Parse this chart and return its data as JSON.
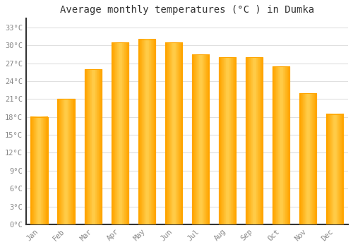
{
  "months": [
    "Jan",
    "Feb",
    "Mar",
    "Apr",
    "May",
    "Jun",
    "Jul",
    "Aug",
    "Sep",
    "Oct",
    "Nov",
    "Dec"
  ],
  "values": [
    18,
    21,
    26,
    30.5,
    31,
    30.5,
    28.5,
    28,
    28,
    26.5,
    22,
    18.5
  ],
  "bar_color_light": "#FFD060",
  "bar_color_dark": "#FFA500",
  "title": "Average monthly temperatures (°C ) in Dumka",
  "title_fontsize": 10,
  "ylabel_ticks": [
    0,
    3,
    6,
    9,
    12,
    15,
    18,
    21,
    24,
    27,
    30,
    33
  ],
  "ylim": [
    0,
    34.5
  ],
  "background_color": "#FFFFFF",
  "grid_color": "#E0E0E0",
  "tick_label_color": "#888888",
  "axis_color": "#333333",
  "font_family": "monospace"
}
